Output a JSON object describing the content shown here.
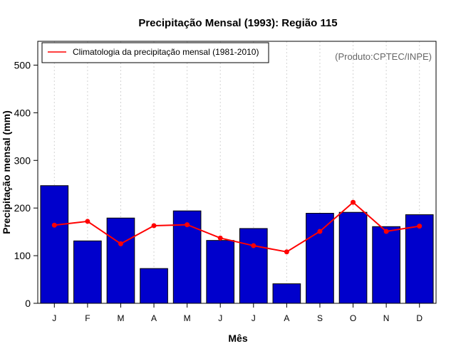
{
  "chart_data": {
    "type": "bar",
    "title": "Precipitação Mensal (1993): Região 115",
    "xlabel": "Mês",
    "ylabel": "Precipitação mensal (mm)",
    "categories": [
      "J",
      "F",
      "M",
      "A",
      "M",
      "J",
      "J",
      "A",
      "S",
      "O",
      "N",
      "D"
    ],
    "ylim": [
      0,
      550
    ],
    "yticks": [
      0,
      100,
      200,
      300,
      400,
      500
    ],
    "grid": "vertical dotted",
    "legend_position": "top-left",
    "credit": "(Produto:CPTEC/INPE)",
    "series": [
      {
        "name": "Precipitação mensal (1993)",
        "type": "bar",
        "color": "#0000CC",
        "values": [
          247,
          131,
          179,
          73,
          194,
          132,
          157,
          41,
          189,
          191,
          161,
          186
        ]
      },
      {
        "name": "Climatologia da precipitação mensal (1981-2010)",
        "type": "line",
        "color": "#FF0000",
        "values": [
          164,
          172,
          125,
          163,
          165,
          137,
          121,
          108,
          151,
          212,
          151,
          162
        ]
      }
    ]
  }
}
